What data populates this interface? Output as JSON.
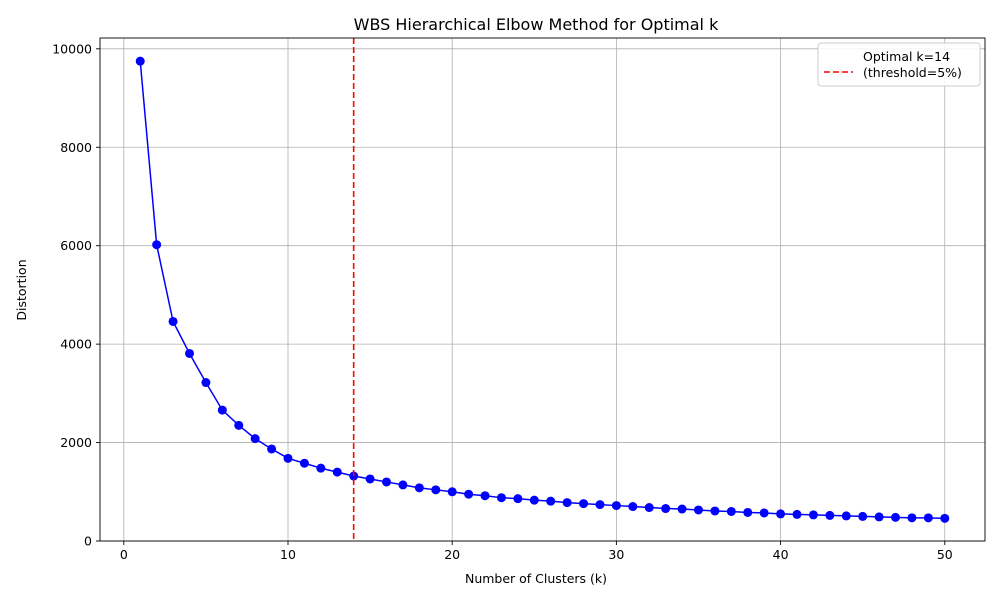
{
  "chart_data": {
    "type": "line",
    "title": "WBS Hierarchical Elbow Method for Optimal k",
    "xlabel": "Number of Clusters (k)",
    "ylabel": "Distortion",
    "xlim": [
      -1.45,
      52.45
    ],
    "ylim": [
      0,
      10220
    ],
    "xticks": [
      0,
      10,
      20,
      30,
      40,
      50
    ],
    "yticks": [
      0,
      2000,
      4000,
      6000,
      8000,
      10000
    ],
    "grid": true,
    "legend_position": "top-right",
    "series": [
      {
        "color": "#0000ff",
        "marker": "circle",
        "x": [
          1,
          2,
          3,
          4,
          5,
          6,
          7,
          8,
          9,
          10,
          11,
          12,
          13,
          14,
          15,
          16,
          17,
          18,
          19,
          20,
          21,
          22,
          23,
          24,
          25,
          26,
          27,
          28,
          29,
          30,
          31,
          32,
          33,
          34,
          35,
          36,
          37,
          38,
          39,
          40,
          41,
          42,
          43,
          44,
          45,
          46,
          47,
          48,
          49,
          50
        ],
        "values": [
          9750,
          6020,
          4460,
          3810,
          3220,
          2660,
          2350,
          2080,
          1870,
          1680,
          1580,
          1480,
          1400,
          1320,
          1260,
          1200,
          1140,
          1080,
          1040,
          1000,
          950,
          920,
          880,
          860,
          830,
          810,
          780,
          760,
          740,
          720,
          700,
          680,
          660,
          650,
          630,
          610,
          600,
          580,
          570,
          550,
          540,
          530,
          520,
          510,
          500,
          490,
          480,
          470,
          470,
          460
        ]
      }
    ],
    "reference_line": {
      "x": 14,
      "color": "#ff0000",
      "style": "dashed",
      "label": "Optimal k=14\n(threshold=5%)"
    }
  }
}
